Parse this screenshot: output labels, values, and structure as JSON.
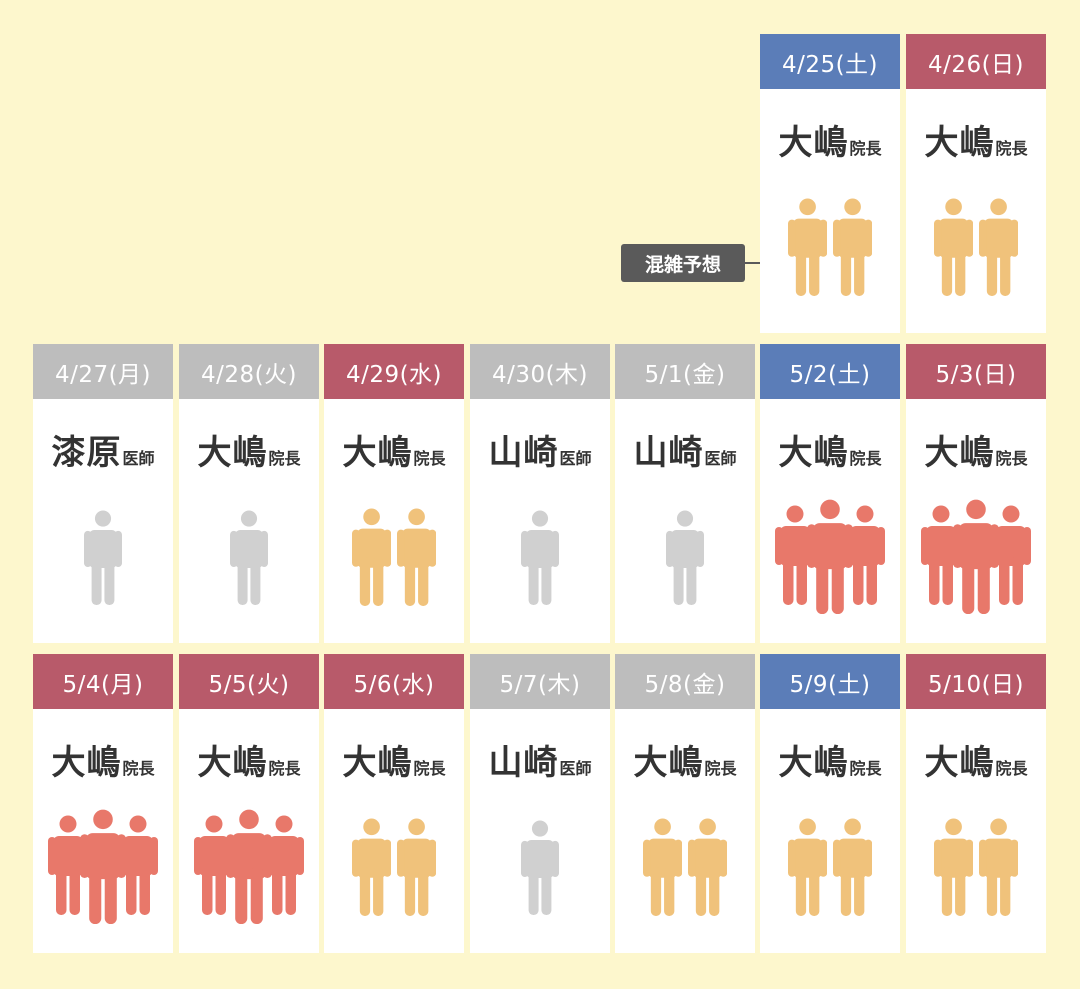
{
  "callout": {
    "label": "混雑予想"
  },
  "colors": {
    "saturday": "#5b7db8",
    "holiday": "#b85a6a",
    "weekday": "#bdbdbd",
    "crowd_low": "#d0d0d0",
    "crowd_mid": "#f0c27b",
    "crowd_high": "#e8786a"
  },
  "days": [
    {
      "date": "4/25(土)",
      "type": "sat",
      "name": "大嶋",
      "title": "院長",
      "crowd": 2
    },
    {
      "date": "4/26(日)",
      "type": "hol",
      "name": "大嶋",
      "title": "院長",
      "crowd": 2
    },
    {
      "date": "4/27(月)",
      "type": "wk",
      "name": "漆原",
      "title": "医師",
      "crowd": 1
    },
    {
      "date": "4/28(火)",
      "type": "wk",
      "name": "大嶋",
      "title": "院長",
      "crowd": 1
    },
    {
      "date": "4/29(水)",
      "type": "hol",
      "name": "大嶋",
      "title": "院長",
      "crowd": 2
    },
    {
      "date": "4/30(木)",
      "type": "wk",
      "name": "山崎",
      "title": "医師",
      "crowd": 1
    },
    {
      "date": "5/1(金)",
      "type": "wk",
      "name": "山崎",
      "title": "医師",
      "crowd": 1
    },
    {
      "date": "5/2(土)",
      "type": "sat",
      "name": "大嶋",
      "title": "院長",
      "crowd": 3
    },
    {
      "date": "5/3(日)",
      "type": "hol",
      "name": "大嶋",
      "title": "院長",
      "crowd": 3
    },
    {
      "date": "5/4(月)",
      "type": "hol",
      "name": "大嶋",
      "title": "院長",
      "crowd": 3
    },
    {
      "date": "5/5(火)",
      "type": "hol",
      "name": "大嶋",
      "title": "院長",
      "crowd": 3
    },
    {
      "date": "5/6(水)",
      "type": "hol",
      "name": "大嶋",
      "title": "院長",
      "crowd": 2
    },
    {
      "date": "5/7(木)",
      "type": "wk",
      "name": "山崎",
      "title": "医師",
      "crowd": 1
    },
    {
      "date": "5/8(金)",
      "type": "wk",
      "name": "大嶋",
      "title": "院長",
      "crowd": 2
    },
    {
      "date": "5/9(土)",
      "type": "sat",
      "name": "大嶋",
      "title": "院長",
      "crowd": 2
    },
    {
      "date": "5/10(日)",
      "type": "hol",
      "name": "大嶋",
      "title": "院長",
      "crowd": 2
    }
  ]
}
